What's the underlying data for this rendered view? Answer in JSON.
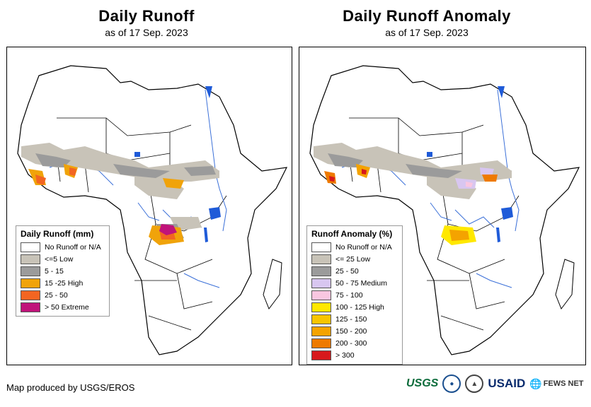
{
  "left_panel": {
    "title": "Daily Runoff",
    "subtitle": "as of 17 Sep. 2023",
    "legend": {
      "title": "Daily Runoff (mm)",
      "items": [
        {
          "label": "No Runoff or N/A",
          "color": "#ffffff"
        },
        {
          "label": "<=5 Low",
          "color": "#c8c3b8"
        },
        {
          "label": "5 - 15",
          "color": "#9b9b9b"
        },
        {
          "label": "15 -25 High",
          "color": "#f0a30a"
        },
        {
          "label": "25 - 50",
          "color": "#f26522"
        },
        {
          "label": "> 50 Extreme",
          "color": "#c0137a"
        }
      ]
    }
  },
  "right_panel": {
    "title": "Daily Runoff Anomaly",
    "subtitle": "as of 17 Sep. 2023",
    "legend": {
      "title": "Runoff Anomaly (%)",
      "items": [
        {
          "label": "No Runoff or N/A",
          "color": "#ffffff"
        },
        {
          "label": "<= 25 Low",
          "color": "#c8c3b8"
        },
        {
          "label": "25 - 50",
          "color": "#9b9b9b"
        },
        {
          "label": "50 - 75 Medium",
          "color": "#d8c6f0"
        },
        {
          "label": "75 - 100",
          "color": "#f9c6e0"
        },
        {
          "label": "100 - 125 High",
          "color": "#ffe800"
        },
        {
          "label": "125 - 150",
          "color": "#f7c500"
        },
        {
          "label": "150 - 200",
          "color": "#f4a300"
        },
        {
          "label": "200 - 300",
          "color": "#ee7a00"
        },
        {
          "label": "> 300",
          "color": "#d7191c"
        }
      ]
    }
  },
  "footer": {
    "credit": "Map produced by USGS/EROS",
    "logos": {
      "usgs": "USGS",
      "noaa": "NOAA",
      "usaid": "USAID",
      "fews": "FEWS NET"
    }
  },
  "colors": {
    "water": "#1f5bd8",
    "river": "#3a6fd8",
    "border": "#000000"
  }
}
